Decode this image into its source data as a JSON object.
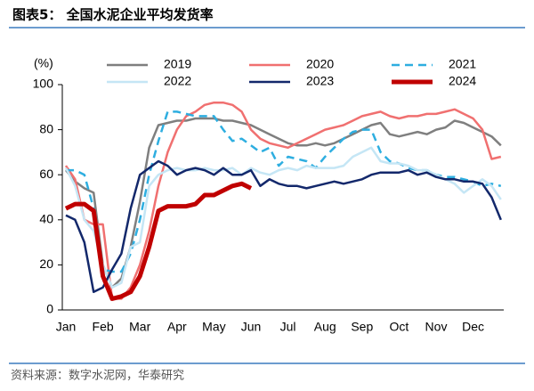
{
  "header": {
    "title": "图表5：  全国水泥企业平均发货率"
  },
  "chart_data": {
    "type": "line",
    "y_unit_label": "(%)",
    "categories": [
      "Jan",
      null,
      null,
      null,
      "Feb",
      null,
      null,
      null,
      "Mar",
      null,
      null,
      null,
      "Apr",
      null,
      null,
      null,
      "May",
      null,
      null,
      null,
      "Jun",
      null,
      null,
      null,
      "Jul",
      null,
      null,
      null,
      "Aug",
      null,
      null,
      null,
      "Sep",
      null,
      null,
      null,
      "Oct",
      null,
      null,
      null,
      "Nov",
      null,
      null,
      null,
      "Dec",
      null,
      null,
      null
    ],
    "ylim": [
      0,
      100
    ],
    "yticks": [
      0,
      20,
      40,
      60,
      80,
      100
    ],
    "series": [
      {
        "name": "2019",
        "color": "#7f7f7f",
        "linewidth": 2.5,
        "dashed": false,
        "values": [
          62,
          57,
          54,
          52,
          20,
          10,
          14,
          28,
          48,
          72,
          82,
          83,
          84,
          84,
          85,
          85,
          85,
          84,
          84,
          83,
          82,
          80,
          78,
          76,
          74,
          73,
          73,
          74,
          73,
          74,
          76,
          78,
          80,
          82,
          83,
          78,
          77,
          78,
          79,
          78,
          80,
          81,
          84,
          83,
          81,
          79,
          77,
          73
        ]
      },
      {
        "name": "2020",
        "color": "#f07070",
        "linewidth": 2.5,
        "dashed": false,
        "values": [
          64,
          58,
          40,
          38,
          38,
          5,
          5,
          10,
          20,
          35,
          55,
          70,
          80,
          86,
          88,
          91,
          92,
          92,
          91,
          88,
          80,
          76,
          74,
          73,
          72,
          74,
          76,
          78,
          80,
          81,
          82,
          84,
          86,
          87,
          88,
          86,
          85,
          86,
          86,
          87,
          87,
          88,
          89,
          87,
          85,
          80,
          67,
          68
        ]
      },
      {
        "name": "2021",
        "color": "#2eaee0",
        "linewidth": 2.5,
        "dashed": true,
        "values": [
          62,
          62,
          60,
          45,
          18,
          17,
          17,
          25,
          40,
          60,
          75,
          88,
          88,
          87,
          86,
          86,
          86,
          80,
          75,
          76,
          73,
          70,
          72,
          64,
          68,
          67,
          66,
          63,
          68,
          72,
          76,
          79,
          80,
          80,
          70,
          66,
          65,
          63,
          62,
          62,
          60,
          59,
          59,
          58,
          57,
          55,
          56,
          55
        ]
      },
      {
        "name": "2022",
        "color": "#c5e6f5",
        "linewidth": 2.5,
        "dashed": false,
        "values": [
          63,
          55,
          40,
          35,
          20,
          10,
          12,
          28,
          30,
          55,
          60,
          62,
          63,
          62,
          62,
          63,
          62,
          62,
          63,
          60,
          63,
          61,
          60,
          62,
          63,
          62,
          64,
          63,
          63,
          63,
          64,
          68,
          70,
          72,
          66,
          65,
          65,
          64,
          62,
          62,
          60,
          58,
          56,
          52,
          55,
          58,
          55,
          49
        ]
      },
      {
        "name": "2023",
        "color": "#13286b",
        "linewidth": 2.5,
        "dashed": false,
        "values": [
          42,
          40,
          30,
          8,
          10,
          18,
          25,
          45,
          60,
          63,
          66,
          64,
          60,
          62,
          63,
          62,
          60,
          63,
          60,
          60,
          62,
          55,
          58,
          56,
          55,
          55,
          54,
          55,
          56,
          57,
          56,
          57,
          58,
          60,
          61,
          61,
          61,
          62,
          60,
          61,
          59,
          58,
          58,
          57,
          57,
          56,
          50,
          40
        ]
      },
      {
        "name": "2024",
        "color": "#c00000",
        "linewidth": 5,
        "dashed": false,
        "values": [
          45,
          47,
          47,
          44,
          15,
          5,
          6,
          8,
          15,
          28,
          44,
          46,
          46,
          46,
          47,
          51,
          51,
          53,
          55,
          56,
          54,
          null,
          null,
          null,
          null,
          null,
          null,
          null,
          null,
          null,
          null,
          null,
          null,
          null,
          null,
          null,
          null,
          null,
          null,
          null,
          null,
          null,
          null,
          null,
          null,
          null,
          null,
          null
        ]
      }
    ]
  },
  "footer": {
    "source": "资料来源：数字水泥网，华泰研究"
  }
}
